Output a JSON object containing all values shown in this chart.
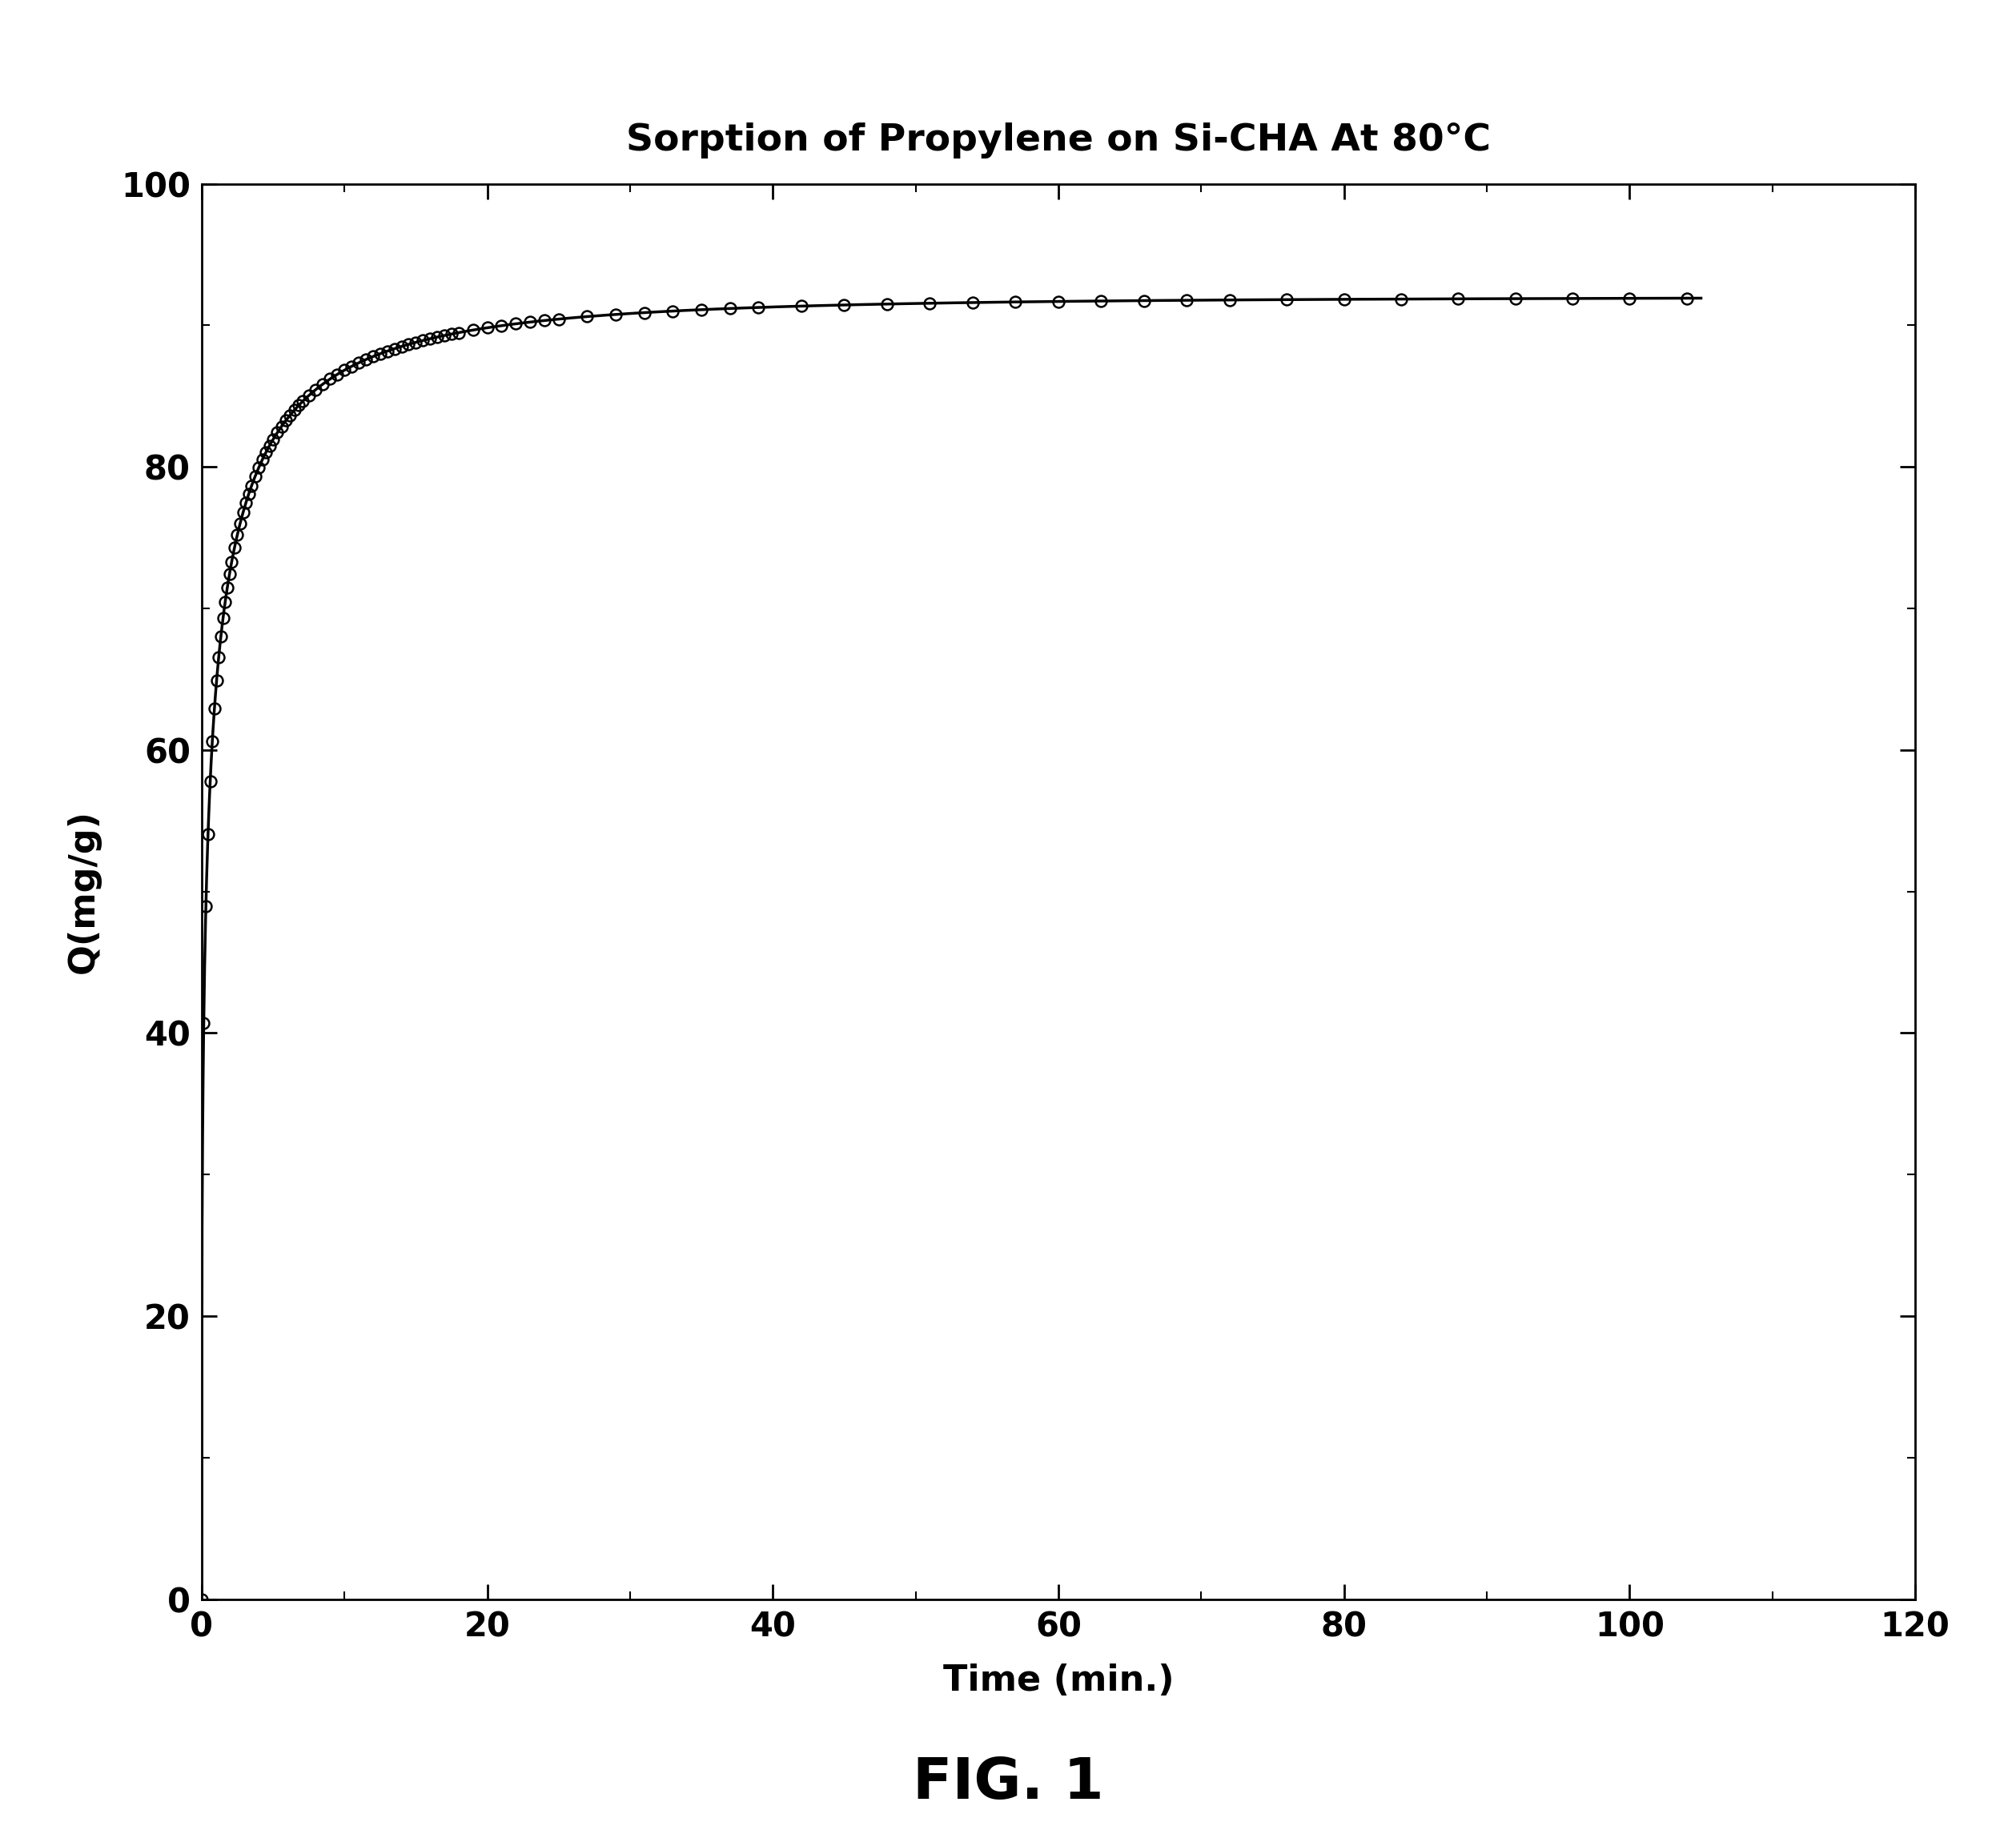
{
  "title": "Sorption of Propylene on Si-CHA At 80°C",
  "xlabel": "Time (min.)",
  "ylabel": "Q(mg/g)",
  "fig_label": "FIG. 1",
  "xlim": [
    0,
    120
  ],
  "ylim": [
    0,
    100
  ],
  "xticks": [
    0,
    20,
    40,
    60,
    80,
    100,
    120
  ],
  "yticks": [
    0,
    20,
    40,
    60,
    80,
    100
  ],
  "background_color": "#ffffff",
  "line_color": "#000000",
  "marker_color": "#000000",
  "title_fontsize": 34,
  "label_fontsize": 32,
  "tick_fontsize": 30,
  "fig_label_fontsize": 52,
  "plateau_value": 92.0,
  "a": 1.2,
  "b": 0.38
}
